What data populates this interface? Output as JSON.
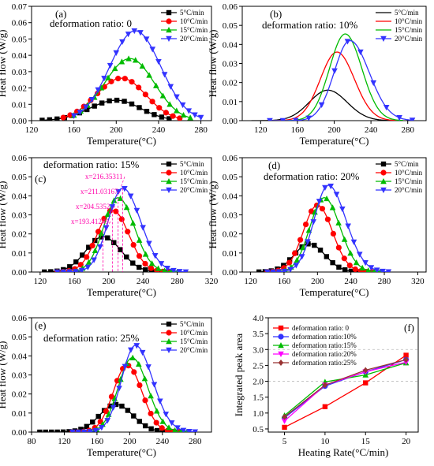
{
  "chart_data": [
    {
      "type": "line",
      "panel": "(a)",
      "annotation": "deformation ratio:  0",
      "xlabel": "Temperature(°C)",
      "ylabel": "Heat flow  (W/g)",
      "xlim": [
        120,
        290
      ],
      "ylim": [
        0,
        0.07
      ],
      "xticks": [
        120,
        160,
        200,
        240,
        280
      ],
      "yticks": [
        0.0,
        0.01,
        0.02,
        0.03,
        0.04,
        0.05,
        0.06,
        0.07
      ],
      "tick_decimals": 2,
      "legend_position": "top-right",
      "series": [
        {
          "name": "5°C/min",
          "color": "#000000",
          "marker": "square",
          "peak_x": 200,
          "peak_y": 0.0125,
          "sigma_left": 25,
          "sigma_right": 23,
          "x_start": 130,
          "x_end": 250,
          "n_markers": 18
        },
        {
          "name": "10°C/min",
          "color": "#ff0000",
          "marker": "circle",
          "peak_x": 205,
          "peak_y": 0.026,
          "sigma_left": 24,
          "sigma_right": 23,
          "x_start": 150,
          "x_end": 260,
          "n_markers": 18
        },
        {
          "name": "15°C/min",
          "color": "#00bb00",
          "marker": "triangle-up",
          "peak_x": 213,
          "peak_y": 0.038,
          "sigma_left": 24,
          "sigma_right": 23,
          "x_start": 160,
          "x_end": 270,
          "n_markers": 18
        },
        {
          "name": "20°C/min",
          "color": "#3333ff",
          "marker": "triangle-down",
          "peak_x": 218,
          "peak_y": 0.055,
          "sigma_left": 24,
          "sigma_right": 24,
          "x_start": 160,
          "x_end": 280,
          "n_markers": 22
        }
      ]
    },
    {
      "type": "line",
      "panel": "(b)",
      "annotation": "deformation ratio:  10%",
      "xlabel": "Temperature(°C)",
      "ylabel": "Heat flow  (W/g)",
      "xlim": [
        100,
        300
      ],
      "ylim": [
        0,
        0.06
      ],
      "xticks": [
        120,
        160,
        200,
        240,
        280
      ],
      "yticks": [
        0.0,
        0.01,
        0.02,
        0.03,
        0.04,
        0.05,
        0.06
      ],
      "tick_decimals": 2,
      "legend_position": "top-right",
      "series": [
        {
          "name": "5°C/min",
          "color": "#000000",
          "marker": "none",
          "peak_x": 193,
          "peak_y": 0.016,
          "sigma_left": 20,
          "sigma_right": 21,
          "x_start": 110,
          "x_end": 260,
          "n_markers": 0
        },
        {
          "name": "10°C/min",
          "color": "#ff0000",
          "marker": "none",
          "peak_x": 203,
          "peak_y": 0.036,
          "sigma_left": 18,
          "sigma_right": 19,
          "x_start": 130,
          "x_end": 270,
          "n_markers": 0
        },
        {
          "name": "15°C/min",
          "color": "#00bb00",
          "marker": "none",
          "peak_x": 212,
          "peak_y": 0.0455,
          "sigma_left": 17,
          "sigma_right": 18,
          "x_start": 130,
          "x_end": 275,
          "n_markers": 0
        },
        {
          "name": "20°C/min",
          "color": "#3333ff",
          "marker": "triangle-down",
          "peak_x": 217,
          "peak_y": 0.042,
          "sigma_left": 17,
          "sigma_right": 21,
          "x_start": 130,
          "x_end": 285,
          "n_markers": 12
        }
      ]
    },
    {
      "type": "line",
      "panel": "(c)",
      "annotation": "deformation ratio:  15%",
      "xlabel": "Temperature(°C)",
      "ylabel": "Heat flow  (W/g)",
      "xlim": [
        110,
        320
      ],
      "ylim": [
        0,
        0.06
      ],
      "xticks": [
        120,
        160,
        200,
        240,
        280,
        320
      ],
      "yticks": [
        0.0,
        0.01,
        0.02,
        0.03,
        0.04,
        0.05,
        0.06
      ],
      "tick_decimals": 2,
      "legend_position": "top-right",
      "series": [
        {
          "name": "5°C/min",
          "color": "#000000",
          "marker": "square",
          "peak_x": 193.41,
          "peak_y": 0.0185,
          "sigma_left": 20,
          "sigma_right": 21,
          "x_start": 125,
          "x_end": 265,
          "n_markers": 20
        },
        {
          "name": "10°C/min",
          "color": "#ff0000",
          "marker": "circle",
          "peak_x": 204.54,
          "peak_y": 0.0325,
          "sigma_left": 18,
          "sigma_right": 19,
          "x_start": 140,
          "x_end": 270,
          "n_markers": 20
        },
        {
          "name": "15°C/min",
          "color": "#00bb00",
          "marker": "triangle-up",
          "peak_x": 211.03,
          "peak_y": 0.039,
          "sigma_left": 17,
          "sigma_right": 19,
          "x_start": 140,
          "x_end": 280,
          "n_markers": 20
        },
        {
          "name": "20°C/min",
          "color": "#3333ff",
          "marker": "triangle-down",
          "peak_x": 216.35,
          "peak_y": 0.044,
          "sigma_left": 17,
          "sigma_right": 21,
          "x_start": 140,
          "x_end": 290,
          "n_markers": 22
        }
      ],
      "peak_annotations": [
        {
          "text": "x=216.35311",
          "x": 216.35,
          "y": 0.044
        },
        {
          "text": "x=211.03167",
          "x": 211.03,
          "y": 0.039
        },
        {
          "text": "x=204.5352",
          "x": 204.54,
          "y": 0.0325
        },
        {
          "text": "x=193.41249",
          "x": 193.41,
          "y": 0.0185
        }
      ]
    },
    {
      "type": "line",
      "panel": "(d)",
      "annotation": "deformation ratio:  20%",
      "xlabel": "Temperature(°C)",
      "ylabel": "Heat flow  (W/g)",
      "xlim": [
        110,
        330
      ],
      "ylim": [
        0,
        0.06
      ],
      "xticks": [
        120,
        160,
        200,
        240,
        280,
        320
      ],
      "yticks": [
        0.0,
        0.01,
        0.02,
        0.03,
        0.04,
        0.05,
        0.06
      ],
      "tick_decimals": 2,
      "legend_position": "top-right",
      "series": [
        {
          "name": "5°C/min",
          "color": "#000000",
          "marker": "square",
          "peak_x": 190,
          "peak_y": 0.0148,
          "sigma_left": 18,
          "sigma_right": 19,
          "x_start": 130,
          "x_end": 255,
          "n_markers": 18
        },
        {
          "name": "10°C/min",
          "color": "#ff0000",
          "marker": "circle",
          "peak_x": 200,
          "peak_y": 0.035,
          "sigma_left": 17,
          "sigma_right": 18,
          "x_start": 140,
          "x_end": 265,
          "n_markers": 20
        },
        {
          "name": "15°C/min",
          "color": "#00bb00",
          "marker": "triangle-up",
          "peak_x": 208,
          "peak_y": 0.039,
          "sigma_left": 17,
          "sigma_right": 19,
          "x_start": 140,
          "x_end": 275,
          "n_markers": 20
        },
        {
          "name": "20°C/min",
          "color": "#3333ff",
          "marker": "triangle-down",
          "peak_x": 213,
          "peak_y": 0.0455,
          "sigma_left": 17,
          "sigma_right": 21,
          "x_start": 140,
          "x_end": 285,
          "n_markers": 22
        }
      ]
    },
    {
      "type": "line",
      "panel": "(e)",
      "annotation": "deformation ratio:  25%",
      "xlabel": "Temperature(°C)",
      "ylabel": "Heat flow  (W/g)",
      "xlim": [
        80,
        300
      ],
      "ylim": [
        0,
        0.06
      ],
      "xticks": [
        80,
        120,
        160,
        200,
        240,
        280
      ],
      "yticks": [
        0.0,
        0.01,
        0.02,
        0.03,
        0.04,
        0.05,
        0.06
      ],
      "tick_decimals": 2,
      "legend_position": "top-right",
      "series": [
        {
          "name": "5°C/min",
          "color": "#000000",
          "marker": "square",
          "peak_x": 183,
          "peak_y": 0.0145,
          "sigma_left": 20,
          "sigma_right": 21,
          "x_start": 90,
          "x_end": 255,
          "n_markers": 24
        },
        {
          "name": "10°C/min",
          "color": "#ff0000",
          "marker": "circle",
          "peak_x": 197,
          "peak_y": 0.035,
          "sigma_left": 17,
          "sigma_right": 18,
          "x_start": 130,
          "x_end": 260,
          "n_markers": 20
        },
        {
          "name": "15°C/min",
          "color": "#00bb00",
          "marker": "triangle-up",
          "peak_x": 203,
          "peak_y": 0.039,
          "sigma_left": 17,
          "sigma_right": 19,
          "x_start": 130,
          "x_end": 270,
          "n_markers": 20
        },
        {
          "name": "20°C/min",
          "color": "#3333ff",
          "marker": "triangle-down",
          "peak_x": 207,
          "peak_y": 0.0455,
          "sigma_left": 17,
          "sigma_right": 21,
          "x_start": 130,
          "x_end": 280,
          "n_markers": 22
        }
      ]
    },
    {
      "type": "line",
      "panel": "(f)",
      "xlabel": "Heating Rate(°C/min)",
      "ylabel": "Integrated peak area",
      "xlim": [
        3,
        21.5
      ],
      "ylim": [
        0.4,
        4.0
      ],
      "xticks": [
        5,
        10,
        15,
        20
      ],
      "yticks": [
        0.5,
        1.0,
        1.5,
        2.0,
        2.5,
        3.0,
        3.5,
        4.0
      ],
      "tick_decimals": 1,
      "dashed_gridlines_y": [
        2.0,
        3.0
      ],
      "legend_position": "top-left",
      "x": [
        5,
        10,
        15,
        20
      ],
      "series": [
        {
          "name": "deformation ratio: 0",
          "color": "#ff0000",
          "marker": "square",
          "values": [
            0.55,
            1.2,
            1.95,
            2.82
          ]
        },
        {
          "name": "deformation ratio:10%",
          "color": "#3333ff",
          "marker": "circle",
          "values": [
            0.85,
            1.85,
            2.3,
            2.68
          ]
        },
        {
          "name": "deformation ratio:15%",
          "color": "#00bb00",
          "marker": "triangle-up",
          "values": [
            0.92,
            1.98,
            2.2,
            2.58
          ]
        },
        {
          "name": "deformation ratio:20%",
          "color": "#ff00ff",
          "marker": "triangle-down",
          "values": [
            0.75,
            1.88,
            2.3,
            2.6
          ]
        },
        {
          "name": "deformation ratio:25%",
          "color": "#993333",
          "marker": "diamond",
          "values": [
            0.88,
            1.88,
            2.35,
            2.68
          ]
        }
      ]
    }
  ]
}
